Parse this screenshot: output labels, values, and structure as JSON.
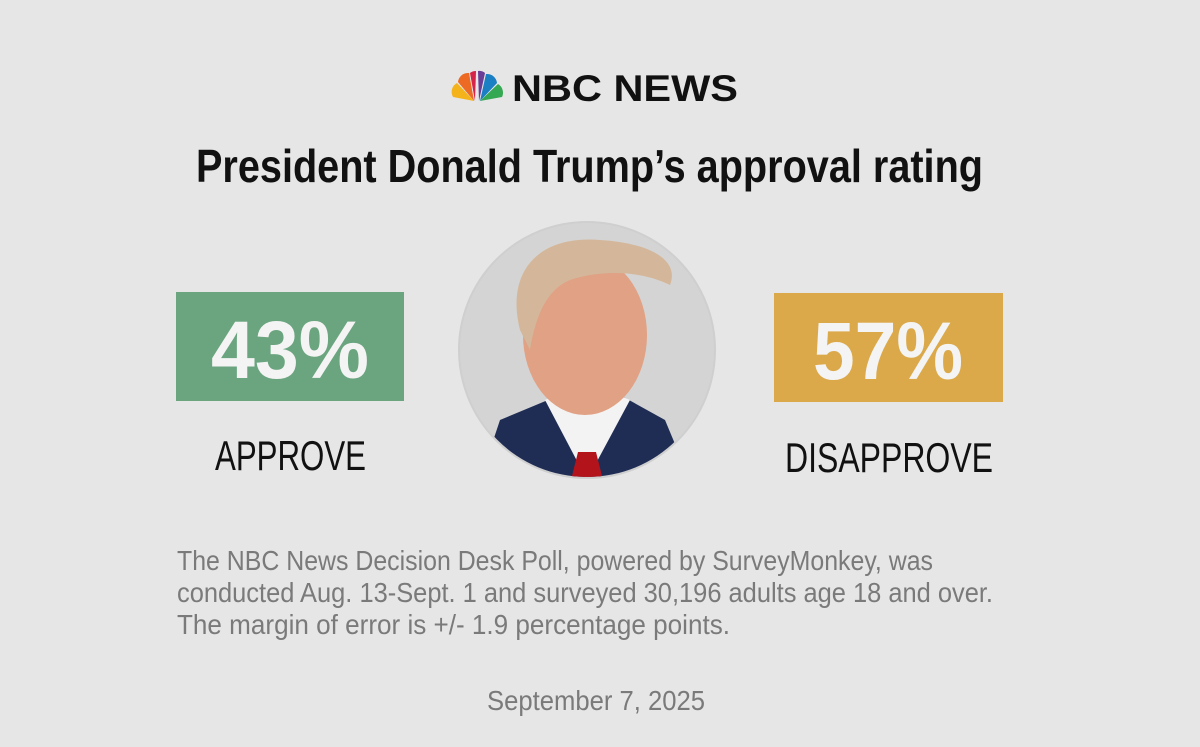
{
  "logo": "NBC NEWS",
  "title": "President Donald Trump’s approval rating",
  "approve": {
    "value": "43%",
    "label": "APPROVE"
  },
  "disapprove": {
    "value": "57%",
    "label": "DISAPPROVE"
  },
  "note": {
    "lines": [
      "The NBC News Decision Desk Poll, powered by SurveyMonkey, was",
      "conducted Aug. 13-Sept. 1 and surveyed 30,196 adults age 18 and over.",
      "The margin of error is +/- 1.9 percentage points."
    ]
  },
  "date": "September 7, 2025"
}
